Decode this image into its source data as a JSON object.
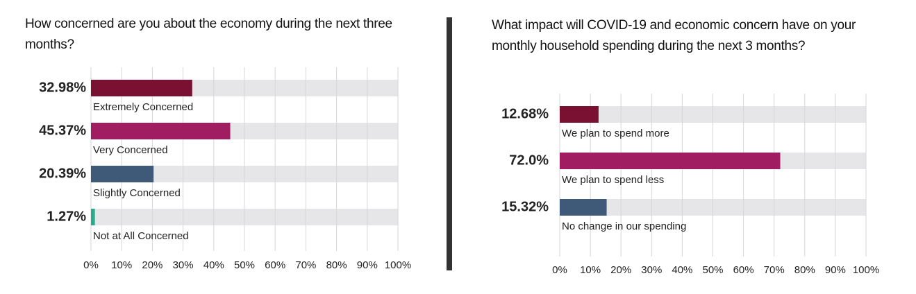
{
  "chart_data": [
    {
      "type": "bar",
      "orientation": "horizontal",
      "title": "How concerned are you about the economy during the next three months?",
      "categories": [
        "Extremely Concerned",
        "Very Concerned",
        "Slightly Concerned",
        "Not at All Concerned"
      ],
      "values": [
        32.98,
        45.37,
        20.39,
        1.27
      ],
      "value_labels": [
        "32.98%",
        "45.37%",
        "20.39%",
        "1.27%"
      ],
      "colors": [
        "#7a1133",
        "#a01d62",
        "#3f5a78",
        "#2aaa8a"
      ],
      "xlim": [
        0,
        100
      ],
      "xticks": [
        {
          "value": 0,
          "label": "0%"
        },
        {
          "value": 10,
          "label": "10%"
        },
        {
          "value": 20,
          "label": "20%"
        },
        {
          "value": 30,
          "label": "30%"
        },
        {
          "value": 40,
          "label": "40%"
        },
        {
          "value": 50,
          "label": "50%"
        },
        {
          "value": 60,
          "label": "60%"
        },
        {
          "value": 70,
          "label": "70%"
        },
        {
          "value": 80,
          "label": "80%"
        },
        {
          "value": 90,
          "label": "90%"
        },
        {
          "value": 100,
          "label": "100%"
        }
      ],
      "grid": true
    },
    {
      "type": "bar",
      "orientation": "horizontal",
      "title": "What impact will COVID-19 and economic concern have on your monthly household spending during the next 3 months?",
      "categories": [
        "We plan to spend more",
        "We plan to spend less",
        "No change in our spending"
      ],
      "values": [
        12.68,
        72.0,
        15.32
      ],
      "value_labels": [
        "12.68%",
        "72.0%",
        "15.32%"
      ],
      "colors": [
        "#7a1133",
        "#a01d62",
        "#3f5a78"
      ],
      "xlim": [
        0,
        100
      ],
      "xticks": [
        {
          "value": 0,
          "label": "0%"
        },
        {
          "value": 10,
          "label": "10%"
        },
        {
          "value": 20,
          "label": "20%"
        },
        {
          "value": 30,
          "label": "30%"
        },
        {
          "value": 40,
          "label": "40%"
        },
        {
          "value": 50,
          "label": "50%"
        },
        {
          "value": 60,
          "label": "60%"
        },
        {
          "value": 70,
          "label": "70%"
        },
        {
          "value": 80,
          "label": "80%"
        },
        {
          "value": 90,
          "label": "90%"
        },
        {
          "value": 100,
          "label": "100%"
        }
      ],
      "grid": true
    }
  ]
}
